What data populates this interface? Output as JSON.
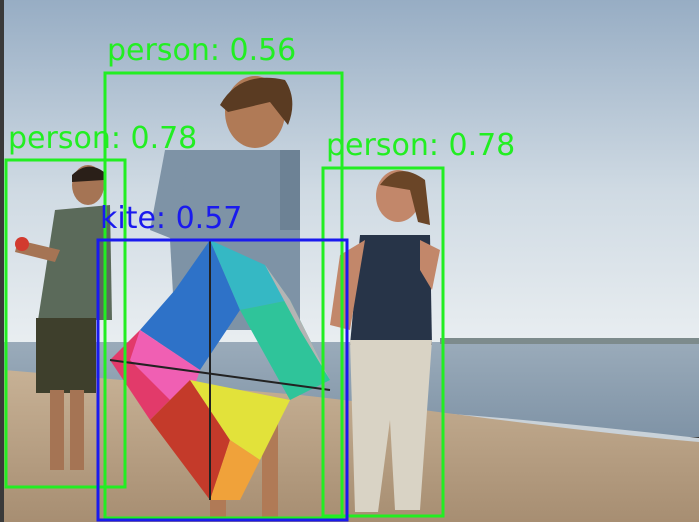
{
  "image": {
    "colors": {
      "sky_top": "#9fb3c8",
      "sky_bottom": "#e6ecf0",
      "sea": "#8fa1b3",
      "sand": "#b9a184",
      "person_box": "#22ee22",
      "kite_box": "#1a1aee"
    },
    "detections": [
      {
        "class": "person",
        "label": "person: 0.56",
        "score": 0.56,
        "color": "#22ee22"
      },
      {
        "class": "person",
        "label": "person: 0.78",
        "score": 0.78,
        "color": "#22ee22"
      },
      {
        "class": "person",
        "label": "person: 0.78",
        "score": 0.78,
        "color": "#22ee22"
      },
      {
        "class": "kite",
        "label": "kite: 0.57",
        "score": 0.57,
        "color": "#1a1aee"
      }
    ]
  }
}
